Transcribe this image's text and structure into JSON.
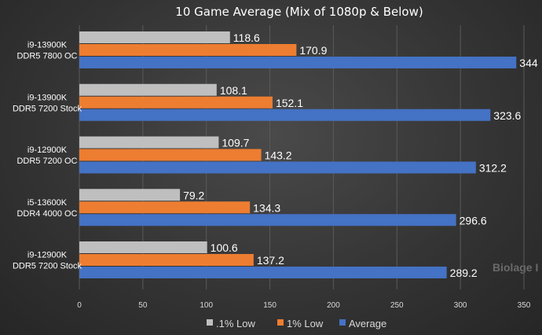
{
  "watermark": "Biolage I",
  "chart_data": {
    "type": "bar",
    "orientation": "horizontal",
    "title": "10 Game Average (Mix of 1080p & Below)",
    "categories": [
      [
        "i9-13900K",
        "DDR5 7800 OC"
      ],
      [
        "i9-13900K",
        "DDR5 7200 Stock"
      ],
      [
        "i9-12900K",
        "DDR5 7200 OC"
      ],
      [
        "i5-13600K",
        "DDR4 4000 OC"
      ],
      [
        "i9-12900K",
        "DDR5 7200 Stock"
      ]
    ],
    "series": [
      {
        "name": ".1% Low",
        "color": "#bfbfbf",
        "values": [
          118.6,
          108.1,
          109.7,
          79.2,
          100.6
        ]
      },
      {
        "name": "1% Low",
        "color": "#ed7d31",
        "values": [
          170.9,
          152.1,
          143.2,
          134.3,
          137.2
        ]
      },
      {
        "name": "Average",
        "color": "#4472c4",
        "values": [
          344,
          323.6,
          312.2,
          296.6,
          289.2
        ]
      }
    ],
    "xlim": [
      0,
      350
    ],
    "xticks": [
      0,
      50,
      100,
      150,
      200,
      250,
      300,
      350
    ],
    "grid": true,
    "legend_position": "bottom"
  }
}
